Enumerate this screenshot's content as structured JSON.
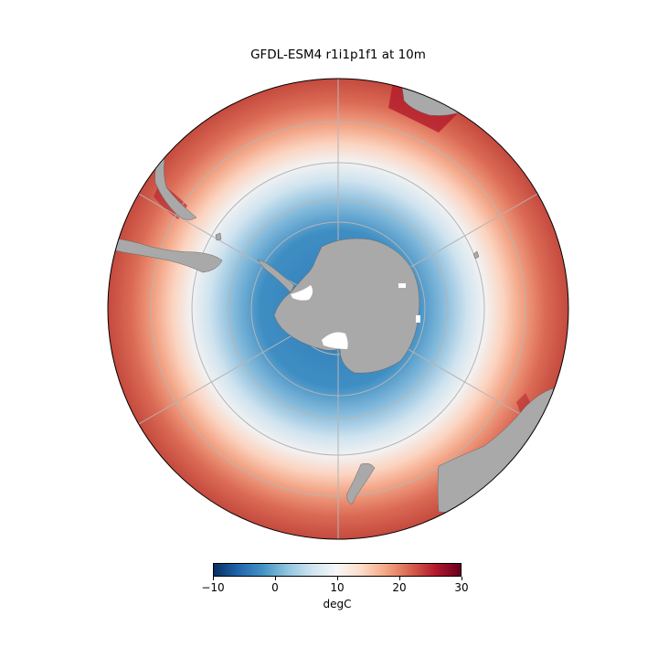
{
  "title": "GFDL-ESM4 r1i1p1f1 at 10m",
  "map": {
    "projection": "south-polar-stereographic",
    "variable": "sea surface temperature",
    "colormap": "RdBu_r",
    "land_color": "#a9a9a9",
    "gridlines": true
  },
  "colorbar": {
    "label": "degC",
    "vmin": -10,
    "vmax": 30,
    "ticks": [
      "−10",
      "0",
      "10",
      "20",
      "30"
    ],
    "tick_values": [
      -10,
      0,
      10,
      20,
      30
    ]
  },
  "colors": {
    "stops": [
      "#053061",
      "#2166ac",
      "#4393c3",
      "#92c5de",
      "#d1e5f0",
      "#f7f7f7",
      "#fddbc7",
      "#f4a582",
      "#d6604d",
      "#b2182b",
      "#67001f"
    ]
  }
}
